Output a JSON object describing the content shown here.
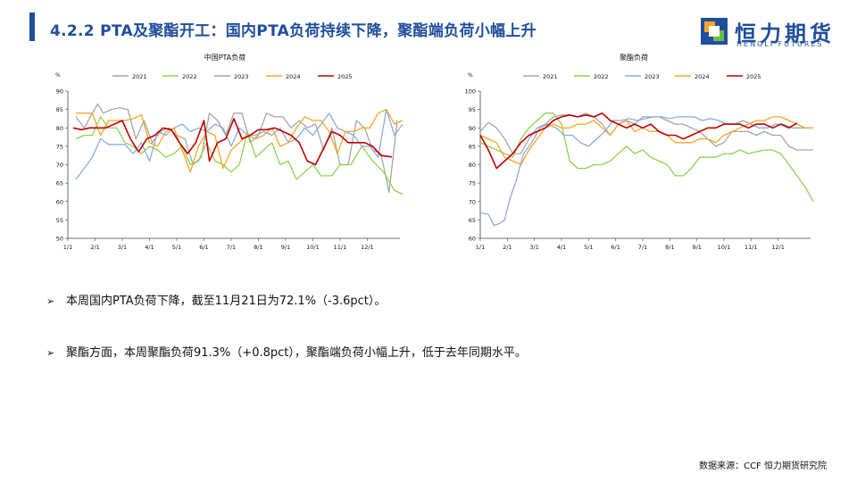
{
  "header": {
    "title": "4.2.2  PTA及聚酯开工：国内PTA负荷持续下降，聚酯端负荷小幅上升",
    "logo_cn": "恒力期货",
    "logo_en": "HENGLI FUTURES"
  },
  "colors": {
    "title_blue": "#1f4e9c",
    "y2021": "#a6a6a6",
    "y2022": "#92d050",
    "y2023": "#8eaadb",
    "y2024": "#f5a623",
    "y2025": "#c00000"
  },
  "chart_data": [
    {
      "type": "line",
      "title": "中国PTA负荷",
      "unit": "%",
      "ylim": [
        50,
        90
      ],
      "yticks": [
        50,
        55,
        60,
        65,
        70,
        75,
        80,
        85,
        90
      ],
      "xticks": [
        "1/1",
        "2/1",
        "3/1",
        "4/1",
        "5/1",
        "6/1",
        "7/1",
        "8/1",
        "9/1",
        "10/1",
        "11/1",
        "12/1"
      ],
      "xlim": [
        0,
        12.2
      ],
      "grid": false,
      "legend_position": "top",
      "series": [
        {
          "name": "2021",
          "color": "#a6a6a6",
          "x": [
            0.3,
            0.6,
            0.9,
            1.1,
            1.3,
            1.6,
            1.9,
            2.2,
            2.5,
            2.8,
            3.1,
            3.4,
            3.7,
            4.0,
            4.3,
            4.6,
            4.9,
            5.2,
            5.5,
            5.8,
            6.1,
            6.4,
            6.7,
            7.0,
            7.3,
            7.6,
            7.9,
            8.2,
            8.5,
            8.8,
            9.1,
            9.4,
            9.7,
            10.0,
            10.3,
            10.6,
            10.9,
            11.2,
            11.5,
            11.8,
            12.1
          ],
          "y": [
            83,
            80,
            84,
            86.5,
            84,
            85,
            85.5,
            85,
            77,
            82,
            76,
            79,
            80,
            78,
            77,
            70,
            72,
            84,
            82,
            78,
            84,
            84,
            76,
            78,
            84,
            83,
            83,
            80,
            82,
            80,
            81,
            74,
            80,
            70,
            70,
            82,
            80,
            74,
            73,
            62.5,
            82
          ]
        },
        {
          "name": "2022",
          "color": "#92d050",
          "x": [
            0.3,
            0.6,
            0.9,
            1.2,
            1.5,
            1.8,
            2.1,
            2.4,
            2.7,
            3.0,
            3.3,
            3.6,
            3.9,
            4.2,
            4.5,
            4.8,
            5.1,
            5.4,
            5.7,
            6.0,
            6.3,
            6.6,
            6.9,
            7.2,
            7.5,
            7.8,
            8.1,
            8.4,
            8.7,
            9.0,
            9.3,
            9.7,
            10.0,
            10.4,
            10.8,
            11.2,
            11.6,
            12.0,
            12.3
          ],
          "y": [
            77,
            78,
            78,
            83,
            80,
            80,
            76,
            75,
            73,
            75,
            74,
            72,
            73,
            75,
            70,
            71,
            76,
            71,
            70,
            68,
            70,
            79,
            72,
            74,
            76,
            70,
            71,
            66,
            68,
            70,
            67,
            67,
            70,
            70,
            75,
            71,
            68,
            63,
            62
          ]
        },
        {
          "name": "2023",
          "color": "#8eaadb",
          "x": [
            0.3,
            0.6,
            0.9,
            1.2,
            1.5,
            1.8,
            2.1,
            2.4,
            2.7,
            3.0,
            3.3,
            3.6,
            3.9,
            4.2,
            4.5,
            4.8,
            5.1,
            5.4,
            5.7,
            6.0,
            6.3,
            6.6,
            6.9,
            7.2,
            7.5,
            7.8,
            8.1,
            8.4,
            8.7,
            9.0,
            9.3,
            9.6,
            9.9,
            10.2,
            10.5,
            10.8,
            11.1,
            11.4,
            11.7,
            12.0,
            12.3
          ],
          "y": [
            66,
            69,
            72,
            77,
            75.5,
            75.5,
            75.5,
            73,
            76,
            71,
            79,
            78,
            80,
            81,
            79,
            80,
            79,
            81,
            80,
            75,
            80,
            78,
            78,
            79,
            78,
            80,
            76,
            77,
            80,
            78,
            81,
            84,
            80,
            79,
            78,
            75,
            75,
            72,
            85,
            78,
            81
          ]
        },
        {
          "name": "2024",
          "color": "#f5a623",
          "x": [
            0.3,
            0.6,
            0.9,
            1.2,
            1.5,
            1.8,
            2.1,
            2.4,
            2.7,
            3.0,
            3.3,
            3.6,
            3.9,
            4.2,
            4.5,
            4.8,
            5.1,
            5.4,
            5.7,
            6.0,
            6.3,
            6.6,
            6.9,
            7.2,
            7.5,
            7.8,
            8.1,
            8.4,
            8.7,
            9.0,
            9.3,
            9.6,
            9.9,
            10.2,
            10.5,
            10.8,
            11.1,
            11.4,
            11.7,
            12.0,
            12.3
          ],
          "y": [
            84,
            84,
            84,
            78,
            82,
            82,
            82,
            82.5,
            83.5,
            76,
            75,
            79,
            80,
            74,
            68,
            75,
            79,
            78,
            69,
            74,
            76,
            78,
            77,
            78,
            80,
            75,
            76,
            80,
            83,
            82,
            82,
            79,
            73,
            79,
            79,
            80,
            80,
            84,
            85,
            81,
            82
          ]
        },
        {
          "name": "2025",
          "color": "#c00000",
          "x": [
            0.2,
            0.5,
            0.8,
            1.1,
            1.4,
            1.7,
            2.0,
            2.3,
            2.6,
            2.9,
            3.2,
            3.5,
            3.8,
            4.1,
            4.4,
            4.7,
            5.0,
            5.2,
            5.5,
            5.8,
            6.1,
            6.4,
            6.7,
            7.0,
            7.3,
            7.6,
            7.9,
            8.2,
            8.5,
            8.8,
            9.1,
            9.4,
            9.7,
            10.0,
            10.3,
            10.6,
            10.9,
            11.2,
            11.5,
            11.9
          ],
          "y": [
            80,
            79.5,
            80,
            80,
            80,
            81,
            82,
            77,
            73.5,
            77,
            78,
            80,
            79.5,
            76,
            73,
            76,
            82,
            71,
            76,
            77,
            82.5,
            77,
            78,
            79.5,
            79.5,
            80,
            79,
            78,
            76,
            71,
            70,
            74.5,
            79,
            78,
            76,
            76,
            76,
            75,
            72.5,
            72.1
          ]
        }
      ]
    },
    {
      "type": "line",
      "title": "聚酯负荷",
      "unit": "%",
      "ylim": [
        60,
        100
      ],
      "yticks": [
        60,
        65,
        70,
        75,
        80,
        85,
        90,
        95,
        100
      ],
      "xticks": [
        "1/1",
        "2/1",
        "3/1",
        "4/1",
        "5/1",
        "6/1",
        "7/1",
        "8/1",
        "9/1",
        "10/1",
        "11/1",
        "12/1"
      ],
      "xlim": [
        0,
        12.2
      ],
      "grid": false,
      "legend_position": "top",
      "series": [
        {
          "name": "2021",
          "color": "#a6a6a6",
          "x": [
            0.0,
            0.3,
            0.6,
            0.9,
            1.2,
            1.5,
            1.8,
            2.1,
            2.4,
            2.7,
            3.0,
            3.3,
            3.6,
            3.9,
            4.2,
            4.5,
            4.8,
            5.1,
            5.4,
            5.7,
            6.0,
            6.3,
            6.6,
            6.9,
            7.2,
            7.5,
            7.8,
            8.1,
            8.4,
            8.7,
            9.0,
            9.3,
            9.6,
            9.9,
            10.2,
            10.5,
            10.8,
            11.1,
            11.4,
            11.7,
            12.0,
            12.3
          ],
          "y": [
            89,
            91.5,
            90,
            87,
            83,
            83,
            87,
            90,
            91,
            93,
            93.5,
            93.5,
            93,
            94,
            93,
            91,
            88,
            91,
            92,
            91,
            93,
            93,
            93,
            92,
            91,
            91,
            90,
            89,
            87,
            85,
            86,
            89,
            89,
            89,
            88,
            89,
            88,
            88,
            85,
            84,
            84,
            84
          ]
        },
        {
          "name": "2022",
          "color": "#92d050",
          "x": [
            0.0,
            0.3,
            0.6,
            0.9,
            1.2,
            1.5,
            1.8,
            2.1,
            2.4,
            2.7,
            3.0,
            3.3,
            3.6,
            3.9,
            4.2,
            4.5,
            4.8,
            5.1,
            5.4,
            5.7,
            6.0,
            6.3,
            6.6,
            6.9,
            7.2,
            7.5,
            7.8,
            8.1,
            8.4,
            8.7,
            9.0,
            9.3,
            9.6,
            9.9,
            10.2,
            10.5,
            10.8,
            11.1,
            11.4,
            11.7,
            12.0,
            12.3
          ],
          "y": [
            86,
            85,
            84,
            83,
            82,
            87,
            90,
            92,
            94,
            94,
            91,
            81,
            79,
            79,
            80,
            80,
            81,
            83,
            85,
            83,
            84,
            82,
            81,
            80,
            77,
            77,
            79,
            82,
            82,
            82,
            83,
            83,
            84,
            83,
            83.5,
            84,
            84,
            83,
            80,
            77,
            74,
            70
          ]
        },
        {
          "name": "2023",
          "color": "#8eaadb",
          "x": [
            0.0,
            0.3,
            0.5,
            0.7,
            0.9,
            1.1,
            1.3,
            1.6,
            1.9,
            2.2,
            2.5,
            2.8,
            3.1,
            3.4,
            3.7,
            4.0,
            4.3,
            4.6,
            4.9,
            5.2,
            5.5,
            5.8,
            6.1,
            6.4,
            6.7,
            7.0,
            7.3,
            7.6,
            7.9,
            8.2,
            8.5,
            8.8,
            9.1,
            9.4,
            9.7,
            10.0,
            10.3,
            10.6,
            10.9,
            11.2,
            11.5,
            11.8,
            12.1
          ],
          "y": [
            67,
            66.5,
            63.5,
            64,
            65,
            71,
            75,
            83,
            86,
            90,
            91,
            90,
            88,
            88,
            86,
            85,
            87,
            89,
            92,
            92,
            92.5,
            92,
            92.5,
            93,
            93,
            92.5,
            93,
            93,
            93,
            92,
            92.5,
            92,
            91,
            91,
            92,
            91,
            90,
            90,
            91,
            91,
            90,
            90,
            90
          ]
        },
        {
          "name": "2024",
          "color": "#f5a623",
          "x": [
            0.0,
            0.3,
            0.6,
            0.9,
            1.2,
            1.5,
            1.8,
            2.1,
            2.4,
            2.7,
            3.0,
            3.3,
            3.6,
            3.9,
            4.2,
            4.5,
            4.8,
            5.1,
            5.4,
            5.7,
            6.0,
            6.3,
            6.6,
            6.9,
            7.2,
            7.5,
            7.8,
            8.1,
            8.4,
            8.7,
            9.0,
            9.3,
            9.6,
            9.9,
            10.2,
            10.5,
            10.8,
            11.1,
            11.4,
            11.7,
            12.0,
            12.3
          ],
          "y": [
            88,
            87,
            86,
            82,
            81,
            80,
            84,
            87,
            90,
            91,
            90,
            90,
            91,
            91,
            92,
            90,
            88,
            91,
            92,
            89,
            90,
            89,
            89,
            88,
            86,
            86,
            86,
            87,
            87,
            86,
            88,
            89,
            90,
            91,
            92,
            92,
            93,
            93,
            92,
            91,
            90,
            90
          ]
        },
        {
          "name": "2025",
          "color": "#c00000",
          "x": [
            0.0,
            0.3,
            0.6,
            0.9,
            1.2,
            1.5,
            1.8,
            2.1,
            2.4,
            2.7,
            3.0,
            3.3,
            3.6,
            3.9,
            4.2,
            4.5,
            4.8,
            5.1,
            5.4,
            5.7,
            6.0,
            6.3,
            6.6,
            6.9,
            7.2,
            7.5,
            7.8,
            8.1,
            8.4,
            8.7,
            9.0,
            9.3,
            9.6,
            9.9,
            10.2,
            10.5,
            10.8,
            11.1,
            11.4,
            11.7
          ],
          "y": [
            88,
            84,
            79,
            81,
            83,
            86,
            88,
            89,
            90,
            92,
            93,
            93.5,
            93,
            93.5,
            93,
            94,
            92,
            91,
            90,
            91,
            90,
            91,
            89,
            88,
            88,
            87,
            88,
            89,
            90,
            90,
            91,
            91,
            91,
            90,
            91,
            91,
            90,
            91,
            90,
            91.3
          ]
        }
      ]
    }
  ],
  "bullets": [
    "本周国内PTA负荷下降，截至11月21日为72.1%（-3.6pct）。",
    "聚酯方面，本周聚酯负荷91.3%（+0.8pct），聚酯端负荷小幅上升，低于去年同期水平。"
  ],
  "bullet_arrow": "➢",
  "source": "数据来源：CCF 恒力期货研究院"
}
